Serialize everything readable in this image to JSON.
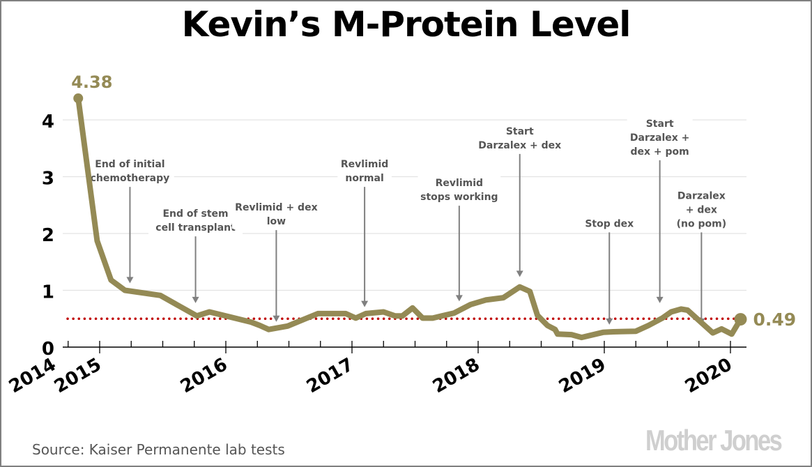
{
  "chart_data": {
    "type": "line",
    "title": "Kevin’s M-Protein Level",
    "xlabel": "",
    "ylabel": "",
    "x_ticks": [
      2014,
      2015,
      2016,
      2017,
      2018,
      2019,
      2020
    ],
    "x_tick_labels": [
      "2014",
      "2015",
      "2016",
      "2017",
      "2018",
      "2019",
      "2020"
    ],
    "y_ticks": [
      0,
      1,
      2,
      3,
      4
    ],
    "y_tick_labels": [
      "0",
      "1",
      "2",
      "3",
      "4"
    ],
    "xlim": [
      2014.7,
      2020.13
    ],
    "ylim": [
      0,
      4.5
    ],
    "grid": true,
    "reference_line": {
      "value": 0.5,
      "style": "dotted",
      "color": "#c00000"
    },
    "line_color": "#948a55",
    "series": [
      {
        "name": "M-Protein",
        "x": [
          2014.83,
          2014.98,
          2015.09,
          2015.2,
          2015.48,
          2015.77,
          2015.87,
          2015.98,
          2016.2,
          2016.27,
          2016.34,
          2016.49,
          2016.62,
          2016.73,
          2016.95,
          2017.03,
          2017.11,
          2017.25,
          2017.34,
          2017.4,
          2017.48,
          2017.56,
          2017.64,
          2017.81,
          2017.94,
          2018.06,
          2018.2,
          2018.33,
          2018.41,
          2018.47,
          2018.55,
          2018.61,
          2018.63,
          2018.74,
          2018.82,
          2018.99,
          2019.07,
          2019.25,
          2019.35,
          2019.46,
          2019.53,
          2019.61,
          2019.66,
          2019.86,
          2019.93,
          2020.01,
          2020.08
        ],
        "values": [
          4.38,
          1.87,
          1.18,
          1.0,
          0.91,
          0.55,
          0.62,
          0.56,
          0.44,
          0.38,
          0.31,
          0.37,
          0.49,
          0.59,
          0.59,
          0.51,
          0.59,
          0.62,
          0.55,
          0.55,
          0.69,
          0.51,
          0.51,
          0.6,
          0.75,
          0.83,
          0.87,
          1.06,
          0.98,
          0.56,
          0.38,
          0.31,
          0.23,
          0.22,
          0.17,
          0.26,
          0.27,
          0.28,
          0.38,
          0.51,
          0.62,
          0.67,
          0.65,
          0.25,
          0.32,
          0.23,
          0.49
        ]
      }
    ],
    "endpoint_labels": [
      {
        "text": "4.38",
        "x": 2014.83,
        "value": 4.38,
        "position": "above"
      },
      {
        "text": "0.49",
        "x": 2020.08,
        "value": 0.49,
        "position": "right"
      }
    ],
    "annotations": [
      {
        "lines": [
          "End of initial",
          "chemotherapy"
        ],
        "x": 2015.24,
        "value": 1.1,
        "arrow_top": 2.82
      },
      {
        "lines": [
          "End of stem",
          "cell transplant"
        ],
        "x": 2015.76,
        "value": 0.75,
        "arrow_top": 1.95
      },
      {
        "lines": [
          "Revlimid + dex",
          "low"
        ],
        "x": 2016.4,
        "value": 0.42,
        "arrow_top": 2.06
      },
      {
        "lines": [
          "Revlimid",
          "normal"
        ],
        "x": 2017.1,
        "value": 0.68,
        "arrow_top": 2.82
      },
      {
        "lines": [
          "Revlimid",
          "stops working"
        ],
        "x": 2017.85,
        "value": 0.78,
        "arrow_top": 2.49
      },
      {
        "lines": [
          "Start",
          "Darzalex + dex"
        ],
        "x": 2018.33,
        "value": 1.21,
        "arrow_top": 3.4
      },
      {
        "lines": [
          "Stop dex"
        ],
        "x": 2019.04,
        "value": 0.37,
        "arrow_top": 2.02
      },
      {
        "lines": [
          "Start",
          "Darzalex +",
          "dex + pom"
        ],
        "x": 2019.44,
        "value": 0.75,
        "arrow_top": 3.29
      },
      {
        "lines": [
          "Darzalex",
          "+ dex",
          "(no pom)"
        ],
        "x": 2019.77,
        "value": 0.37,
        "arrow_top": 2.02
      }
    ]
  },
  "footer": {
    "source": "Source: Kaiser Permanente lab tests",
    "logo": "Mother Jones"
  }
}
